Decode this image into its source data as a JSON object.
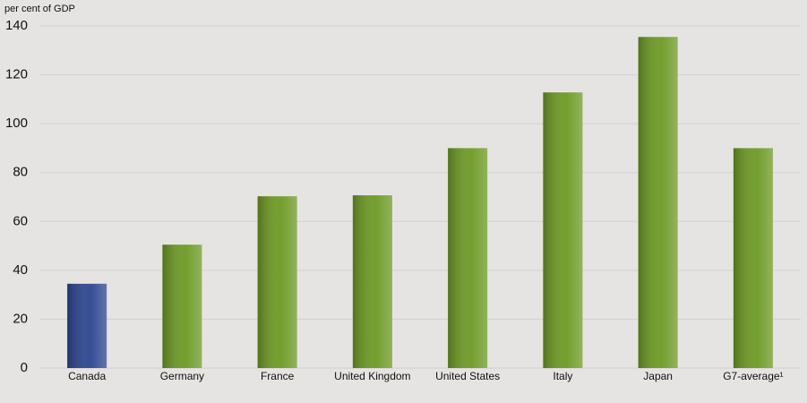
{
  "chart_data": {
    "type": "bar",
    "y_label": "per cent  of GDP",
    "categories": [
      "Canada",
      "Germany",
      "France",
      "United Kingdom",
      "United States",
      "Italy",
      "Japan",
      "G7-average¹"
    ],
    "values": [
      34.5,
      50.5,
      70.3,
      70.7,
      90,
      112.8,
      135.5,
      90
    ],
    "colors": [
      "#2d4590",
      "#6c9a24",
      "#6c9a24",
      "#6c9a24",
      "#6c9a24",
      "#6c9a24",
      "#6c9a24",
      "#6c9a24"
    ],
    "ylim": [
      0,
      140
    ],
    "yticks": [
      0,
      20,
      40,
      60,
      80,
      100,
      120,
      140
    ],
    "grid": true
  }
}
